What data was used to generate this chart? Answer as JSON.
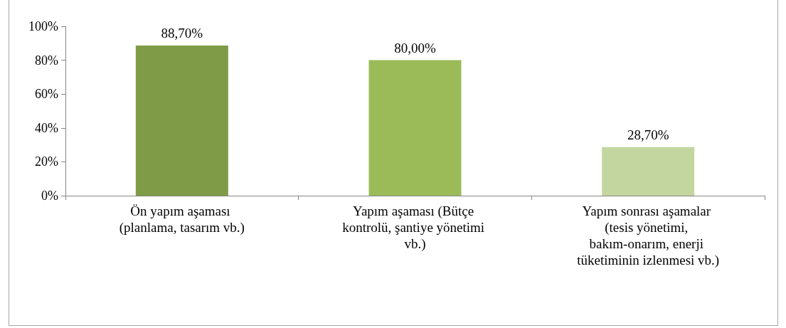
{
  "chart_data": {
    "type": "bar",
    "categories": [
      "Ön yapım aşaması (planlama, tasarım vb.)",
      "Yapım aşaması (Bütçe kontrolü, şantiye yönetimi vb.)",
      "Yapım sonrası aşamalar (tesis yönetimi, bakım-onarım, enerji tüketiminin izlenmesi vb.)"
    ],
    "values": [
      88.7,
      80,
      28.7
    ],
    "colors": [
      "#7f9b48",
      "#9bbb59",
      "#c4d6a0"
    ],
    "value_labels": [
      "88,70%",
      "80,00%",
      "28,70%"
    ],
    "ylim": [
      0,
      100
    ],
    "yticks": [
      {
        "value": 0,
        "label": "0%"
      },
      {
        "value": 20,
        "label": "20%"
      },
      {
        "value": 40,
        "label": "40%"
      },
      {
        "value": 60,
        "label": "60%"
      },
      {
        "value": 80,
        "label": "80%"
      },
      {
        "value": 100,
        "label": "100%"
      }
    ],
    "grid": false
  }
}
